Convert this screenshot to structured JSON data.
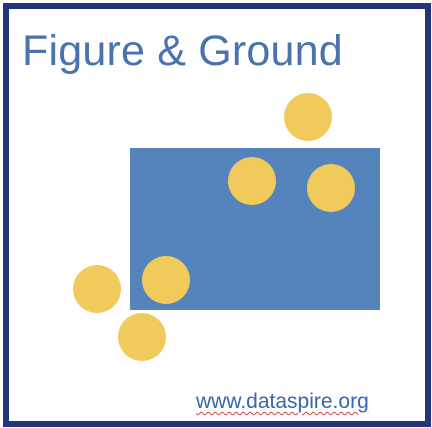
{
  "title": "Figure & Ground",
  "footer_url": "www.dataspire.org",
  "colors": {
    "border": "#23357a",
    "title_text": "#4a72ad",
    "ground_rect": "#5584bd",
    "figure_circle": "#f0ca5a",
    "footer_text": "#3566ae"
  },
  "shapes": {
    "ground": "rectangle",
    "figures": [
      "circle",
      "circle",
      "circle",
      "circle",
      "circle",
      "circle"
    ]
  }
}
